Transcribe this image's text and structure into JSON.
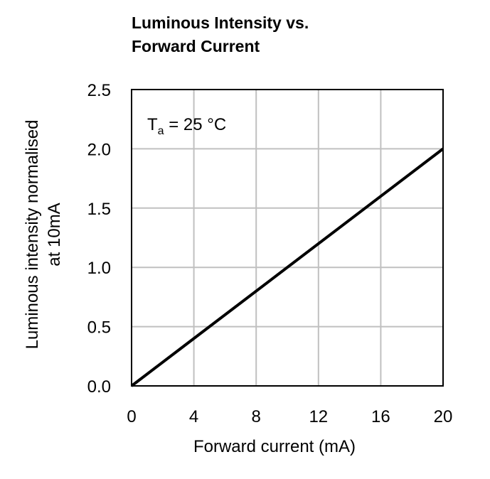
{
  "chart_data": {
    "type": "line",
    "title": [
      "Luminous Intensity vs.",
      "Forward Current"
    ],
    "xlabel": "Forward current (mA)",
    "ylabel": [
      "Luminous intensity normalised",
      "at 10mA"
    ],
    "xlim": [
      0,
      20
    ],
    "ylim": [
      0,
      2.5
    ],
    "x_ticks": [
      "0",
      "4",
      "8",
      "12",
      "16",
      "20"
    ],
    "y_ticks": [
      "0.0",
      "0.5",
      "1.0",
      "1.5",
      "2.0",
      "2.5"
    ],
    "grid": true,
    "annotation": {
      "main": "T",
      "sub": "a",
      "rest": " = 25 °C"
    },
    "series": [
      {
        "x": [
          0,
          20
        ],
        "y": [
          0,
          2.0
        ],
        "color": "#000000"
      }
    ]
  }
}
